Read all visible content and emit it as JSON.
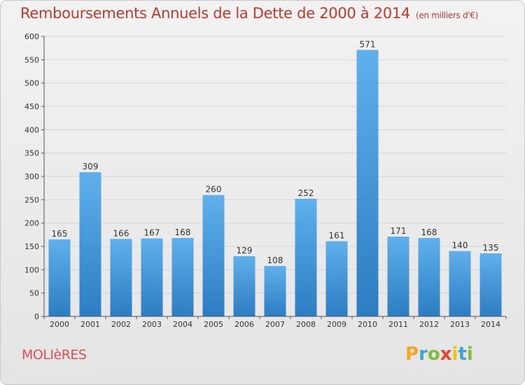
{
  "title": "Remboursements Annuels de la Dette de 2000 à 2014",
  "unit_note": "(en milliers d'€)",
  "commune": "MOLIèRES",
  "logo": {
    "letters": [
      "P",
      "r",
      "o",
      "x",
      "i",
      "t",
      "i"
    ],
    "colors": [
      "#f5a623",
      "#3aa3d8",
      "#7cbf3a",
      "#e8452c",
      "#f5c400",
      "#3aa3d8",
      "#7cbf3a"
    ]
  },
  "colors": {
    "bar": "#3d95d9",
    "bar_light": "#5fb0ec",
    "title": "#c0392b"
  },
  "chart_data": {
    "type": "bar",
    "categories": [
      "2000",
      "2001",
      "2002",
      "2003",
      "2004",
      "2005",
      "2006",
      "2007",
      "2008",
      "2009",
      "2010",
      "2011",
      "2012",
      "2013",
      "2014"
    ],
    "values": [
      165,
      309,
      166,
      167,
      168,
      260,
      129,
      108,
      252,
      161,
      571,
      171,
      168,
      140,
      135
    ],
    "ylim": [
      0,
      600
    ],
    "yticks": [
      0,
      50,
      100,
      150,
      200,
      250,
      300,
      350,
      400,
      450,
      500,
      550,
      600
    ],
    "grid": true,
    "xlabel": "",
    "ylabel": ""
  }
}
